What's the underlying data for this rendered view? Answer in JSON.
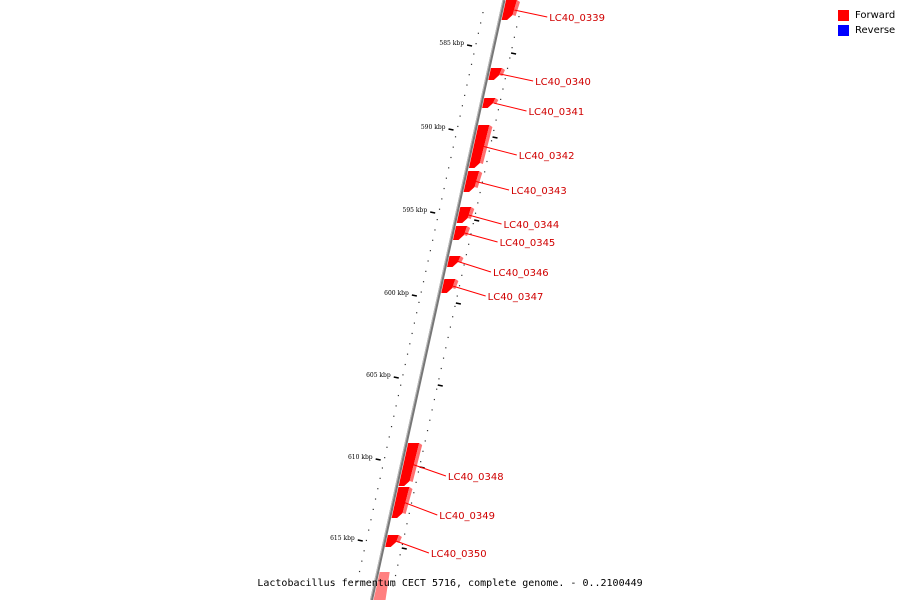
{
  "legend": {
    "forward": {
      "label": "Forward",
      "color": "#ff0000"
    },
    "reverse": {
      "label": "Reverse",
      "color": "#0000ff"
    }
  },
  "caption": "Lactobacillus fermentum CECT 5716, complete genome. - 0..2100449",
  "ticks": [
    "585 kbp",
    "590 kbp",
    "595 kbp",
    "600 kbp",
    "605 kbp",
    "610 kbp",
    "615 kbp"
  ],
  "genes": [
    {
      "label": "LC40_0339",
      "strand": "forward"
    },
    {
      "label": "LC40_0340",
      "strand": "forward"
    },
    {
      "label": "LC40_0341",
      "strand": "forward"
    },
    {
      "label": "LC40_0342",
      "strand": "forward"
    },
    {
      "label": "LC40_0343",
      "strand": "forward"
    },
    {
      "label": "LC40_0344",
      "strand": "forward"
    },
    {
      "label": "LC40_0345",
      "strand": "forward"
    },
    {
      "label": "LC40_0346",
      "strand": "forward"
    },
    {
      "label": "LC40_0347",
      "strand": "forward"
    },
    {
      "label": "LC40_0348",
      "strand": "forward"
    },
    {
      "label": "LC40_0349",
      "strand": "forward"
    },
    {
      "label": "LC40_0350",
      "strand": "forward"
    }
  ],
  "colors": {
    "forward": "#ff0000",
    "forward_dark": "#b00000",
    "backbone": "#777777",
    "leader": "#ff0000"
  }
}
